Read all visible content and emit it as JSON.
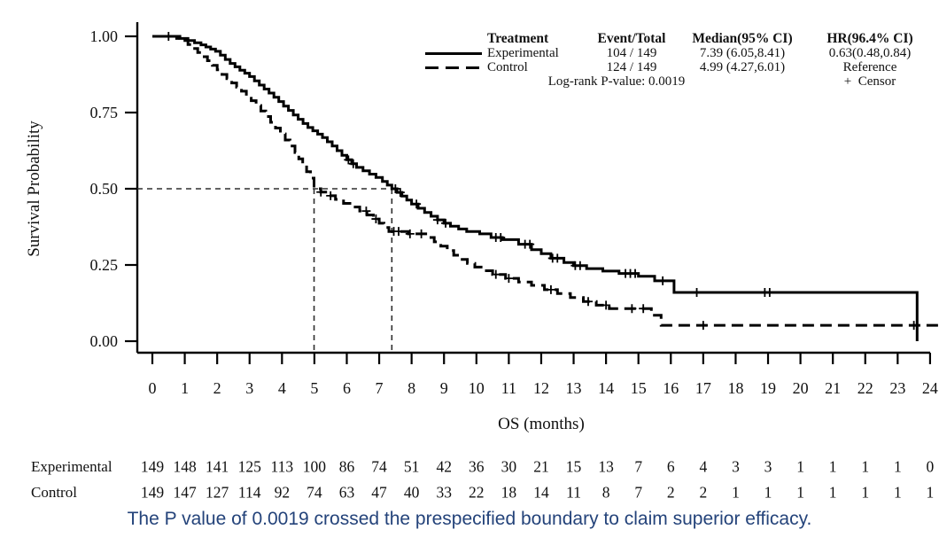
{
  "legend": {
    "header": {
      "treatment": "Treatment",
      "event_total": "Event/Total",
      "median": "Median(95% CI)",
      "hr": "HR(96.4% CI)"
    },
    "rows": [
      {
        "name": "Experimental",
        "event_total": "104 / 149",
        "median": "7.39 (6.05,8.41)",
        "hr": "0.63(0.48,0.84)",
        "line": "solid"
      },
      {
        "name": "Control",
        "event_total": "124 / 149",
        "median": "4.99 (4.27,6.01)",
        "hr": "Reference",
        "line": "dashed"
      }
    ],
    "logrank": "Log-rank P-value: 0.0019",
    "censor_note": "+  Censor"
  },
  "chart_data": {
    "type": "line",
    "subtype": "kaplan-meier-step",
    "xlabel": "OS (months)",
    "ylabel": "Survival Probability",
    "xlim": [
      0,
      24
    ],
    "ylim": [
      0,
      1
    ],
    "grid": false,
    "legend_position": "top-right",
    "xticks": [
      0,
      1,
      2,
      3,
      4,
      5,
      6,
      7,
      8,
      9,
      10,
      11,
      12,
      13,
      14,
      15,
      16,
      17,
      18,
      19,
      20,
      21,
      22,
      23,
      24
    ],
    "yticks": [
      0,
      0.25,
      0.5,
      0.75,
      1
    ],
    "ytick_labels": [
      "0.00",
      "0.25",
      "0.50",
      "0.75",
      "1.00"
    ],
    "medians": {
      "experimental": 7.39,
      "control": 4.99,
      "reference_survival": 0.5
    },
    "logrank_p": 0.0019,
    "series": [
      {
        "name": "Experimental",
        "style": "solid",
        "color": "#000000",
        "events": 104,
        "total": 149,
        "median": 7.39,
        "median_ci": [
          6.05,
          8.41
        ],
        "hr": 0.63,
        "hr_ci": [
          0.48,
          0.84
        ],
        "steps": [
          [
            0,
            1.0
          ],
          [
            0.85,
            0.993
          ],
          [
            1.1,
            0.986
          ],
          [
            1.3,
            0.979
          ],
          [
            1.5,
            0.972
          ],
          [
            1.65,
            0.965
          ],
          [
            1.8,
            0.958
          ],
          [
            1.95,
            0.951
          ],
          [
            2.1,
            0.938
          ],
          [
            2.25,
            0.924
          ],
          [
            2.4,
            0.911
          ],
          [
            2.55,
            0.9
          ],
          [
            2.7,
            0.889
          ],
          [
            2.85,
            0.879
          ],
          [
            3.0,
            0.868
          ],
          [
            3.15,
            0.854
          ],
          [
            3.3,
            0.84
          ],
          [
            3.45,
            0.827
          ],
          [
            3.6,
            0.814
          ],
          [
            3.75,
            0.8
          ],
          [
            3.9,
            0.786
          ],
          [
            4.05,
            0.771
          ],
          [
            4.2,
            0.757
          ],
          [
            4.35,
            0.742
          ],
          [
            4.5,
            0.728
          ],
          [
            4.65,
            0.714
          ],
          [
            4.8,
            0.701
          ],
          [
            4.95,
            0.69
          ],
          [
            5.1,
            0.679
          ],
          [
            5.25,
            0.668
          ],
          [
            5.4,
            0.654
          ],
          [
            5.55,
            0.64
          ],
          [
            5.7,
            0.625
          ],
          [
            5.85,
            0.61
          ],
          [
            6.0,
            0.595
          ],
          [
            6.15,
            0.582
          ],
          [
            6.3,
            0.57
          ],
          [
            6.5,
            0.559
          ],
          [
            6.7,
            0.548
          ],
          [
            6.9,
            0.537
          ],
          [
            7.1,
            0.524
          ],
          [
            7.25,
            0.512
          ],
          [
            7.39,
            0.5
          ],
          [
            7.55,
            0.488
          ],
          [
            7.7,
            0.476
          ],
          [
            7.85,
            0.463
          ],
          [
            8.0,
            0.45
          ],
          [
            8.2,
            0.436
          ],
          [
            8.4,
            0.422
          ],
          [
            8.6,
            0.41
          ],
          [
            8.8,
            0.398
          ],
          [
            9.0,
            0.387
          ],
          [
            9.2,
            0.377
          ],
          [
            9.45,
            0.368
          ],
          [
            9.7,
            0.36
          ],
          [
            10.1,
            0.352
          ],
          [
            10.45,
            0.34
          ],
          [
            10.8,
            0.333
          ],
          [
            11.3,
            0.318
          ],
          [
            11.7,
            0.3
          ],
          [
            12.0,
            0.287
          ],
          [
            12.3,
            0.272
          ],
          [
            12.7,
            0.258
          ],
          [
            13.0,
            0.248
          ],
          [
            13.4,
            0.238
          ],
          [
            13.9,
            0.23
          ],
          [
            14.4,
            0.222
          ],
          [
            15.0,
            0.213
          ],
          [
            15.5,
            0.198
          ],
          [
            16.1,
            0.16
          ],
          [
            23.6,
            0.16
          ],
          [
            23.6,
            0.0
          ]
        ],
        "censor_months": [
          0.5,
          6.05,
          6.2,
          7.5,
          7.65,
          8.15,
          8.8,
          9.05,
          10.6,
          10.75,
          11.5,
          11.65,
          12.35,
          12.5,
          13.05,
          13.2,
          14.6,
          14.75,
          14.9,
          15.75,
          16.8,
          18.9,
          19.05
        ]
      },
      {
        "name": "Control",
        "style": "dashed",
        "color": "#000000",
        "events": 124,
        "total": 149,
        "median": 4.99,
        "median_ci": [
          4.27,
          6.01
        ],
        "hr": null,
        "steps": [
          [
            0,
            1.0
          ],
          [
            0.75,
            0.993
          ],
          [
            0.95,
            0.986
          ],
          [
            1.1,
            0.973
          ],
          [
            1.25,
            0.96
          ],
          [
            1.4,
            0.947
          ],
          [
            1.55,
            0.933
          ],
          [
            1.7,
            0.92
          ],
          [
            1.85,
            0.905
          ],
          [
            2.0,
            0.89
          ],
          [
            2.15,
            0.875
          ],
          [
            2.3,
            0.861
          ],
          [
            2.45,
            0.847
          ],
          [
            2.6,
            0.833
          ],
          [
            2.75,
            0.82
          ],
          [
            2.9,
            0.805
          ],
          [
            3.05,
            0.789
          ],
          [
            3.2,
            0.773
          ],
          [
            3.35,
            0.755
          ],
          [
            3.5,
            0.737
          ],
          [
            3.65,
            0.718
          ],
          [
            3.8,
            0.699
          ],
          [
            3.95,
            0.68
          ],
          [
            4.1,
            0.66
          ],
          [
            4.25,
            0.64
          ],
          [
            4.4,
            0.619
          ],
          [
            4.52,
            0.598
          ],
          [
            4.64,
            0.577
          ],
          [
            4.76,
            0.556
          ],
          [
            4.88,
            0.535
          ],
          [
            4.99,
            0.5
          ],
          [
            5.2,
            0.489
          ],
          [
            5.4,
            0.477
          ],
          [
            5.65,
            0.465
          ],
          [
            5.9,
            0.452
          ],
          [
            6.15,
            0.44
          ],
          [
            6.4,
            0.427
          ],
          [
            6.62,
            0.414
          ],
          [
            6.82,
            0.401
          ],
          [
            7.0,
            0.387
          ],
          [
            7.15,
            0.373
          ],
          [
            7.3,
            0.36
          ],
          [
            7.9,
            0.352
          ],
          [
            8.5,
            0.34
          ],
          [
            8.7,
            0.326
          ],
          [
            8.9,
            0.312
          ],
          [
            9.1,
            0.297
          ],
          [
            9.3,
            0.282
          ],
          [
            9.5,
            0.268
          ],
          [
            9.72,
            0.255
          ],
          [
            9.95,
            0.243
          ],
          [
            10.2,
            0.231
          ],
          [
            10.5,
            0.219
          ],
          [
            10.9,
            0.206
          ],
          [
            11.3,
            0.194
          ],
          [
            11.7,
            0.183
          ],
          [
            12.1,
            0.169
          ],
          [
            12.5,
            0.156
          ],
          [
            12.9,
            0.143
          ],
          [
            13.3,
            0.13
          ],
          [
            13.7,
            0.118
          ],
          [
            14.1,
            0.107
          ],
          [
            15.4,
            0.085
          ],
          [
            15.7,
            0.052
          ],
          [
            24.25,
            0.052
          ]
        ],
        "censor_months": [
          5.2,
          5.5,
          6.6,
          6.9,
          7.45,
          7.6,
          7.95,
          8.3,
          10.6,
          11.0,
          12.3,
          13.45,
          14.0,
          14.8,
          15.15,
          17.0,
          23.5
        ]
      }
    ],
    "at_risk": {
      "months": [
        0,
        1,
        2,
        3,
        4,
        5,
        6,
        7,
        8,
        9,
        10,
        11,
        12,
        13,
        14,
        15,
        16,
        17,
        18,
        19,
        20,
        21,
        22,
        23,
        24
      ],
      "rows": [
        {
          "label": "Experimental",
          "counts": [
            149,
            148,
            141,
            125,
            113,
            100,
            86,
            74,
            51,
            42,
            36,
            30,
            21,
            15,
            13,
            7,
            6,
            4,
            3,
            3,
            1,
            1,
            1,
            1,
            0
          ]
        },
        {
          "label": "Control",
          "counts": [
            149,
            147,
            127,
            114,
            92,
            74,
            63,
            47,
            40,
            33,
            22,
            18,
            14,
            11,
            8,
            7,
            2,
            2,
            1,
            1,
            1,
            1,
            1,
            1,
            1
          ]
        }
      ]
    }
  },
  "caption": {
    "text": "The P value of 0.0019 crossed the prespecified boundary to claim superior efficacy.",
    "color": "#24437a"
  }
}
